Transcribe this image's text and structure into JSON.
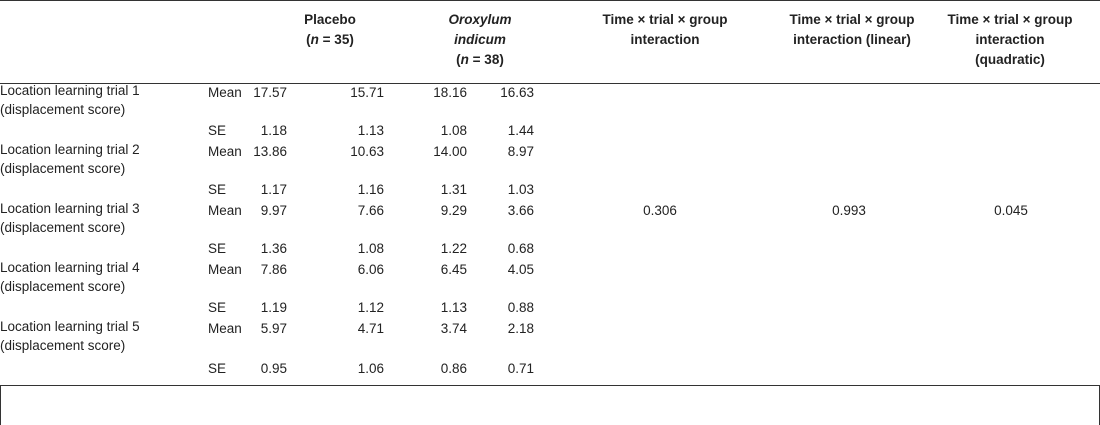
{
  "headers": {
    "placebo_title": "Placebo",
    "placebo_n": "(n = 35)",
    "placebo_n_pre": "(",
    "placebo_n_var": "n",
    "placebo_n_post": " = 35)",
    "oi_line1": "Oroxylum",
    "oi_line2": "indicum",
    "oi_n_pre": "(",
    "oi_n_var": "n",
    "oi_n_post": " = 38)",
    "col_interaction_1": "Time × trial × group",
    "col_interaction_2": "interaction",
    "col_linear_1": "Time × trial × group",
    "col_linear_2": "interaction (linear)",
    "col_quad_1": "Time × trial × group",
    "col_quad_2": "interaction",
    "col_quad_3": "(quadratic)"
  },
  "rows": [
    {
      "label1": "Location learning trial 1",
      "label2": "(displacement score)",
      "mean": [
        "17.57",
        "15.71",
        "18.16",
        "16.63"
      ],
      "se": [
        "1.18",
        "1.13",
        "1.08",
        "1.44"
      ]
    },
    {
      "label1": "Location learning trial 2",
      "label2": "(displacement score)",
      "mean": [
        "13.86",
        "10.63",
        "14.00",
        "8.97"
      ],
      "se": [
        "1.17",
        "1.16",
        "1.31",
        "1.03"
      ]
    },
    {
      "label1": "Location learning trial 3",
      "label2": "(displacement score)",
      "mean": [
        "9.97",
        "7.66",
        "9.29",
        "3.66"
      ],
      "se": [
        "1.36",
        "1.08",
        "1.22",
        "0.68"
      ]
    },
    {
      "label1": "Location learning trial 4",
      "label2": "(displacement score)",
      "mean": [
        "7.86",
        "6.06",
        "6.45",
        "4.05"
      ],
      "se": [
        "1.19",
        "1.12",
        "1.13",
        "0.88"
      ]
    },
    {
      "label1": "Location learning trial 5",
      "label2": "(displacement score)",
      "mean": [
        "5.97",
        "4.71",
        "3.74",
        "2.18"
      ],
      "se": [
        "0.95",
        "1.06",
        "0.86",
        "0.71"
      ]
    }
  ],
  "stat_labels": {
    "mean": "Mean",
    "se": "SE"
  },
  "p_values": {
    "interaction": "0.306",
    "linear": "0.993",
    "quadratic": "0.045"
  }
}
